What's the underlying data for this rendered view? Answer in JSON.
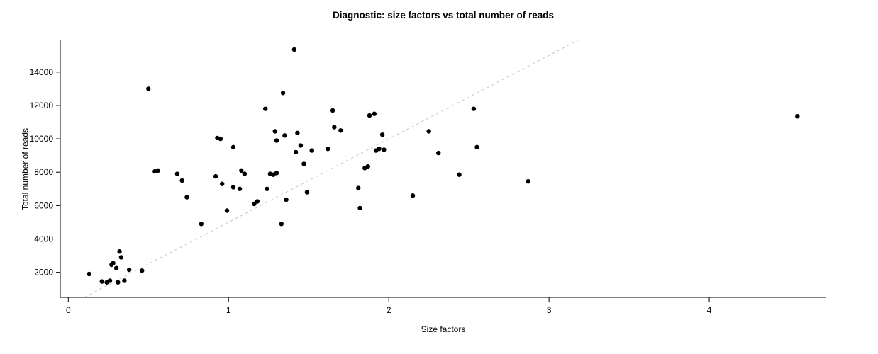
{
  "figure": {
    "title": "Diagnostic: size factors vs total number of reads",
    "xlabel": "Size factors",
    "ylabel": "Total number of reads"
  },
  "chart_data": {
    "type": "scatter",
    "title": "Diagnostic: size factors vs total number of reads",
    "xlabel": "Size factors",
    "ylabel": "Total number of reads",
    "x_ticks": [
      0,
      1,
      2,
      3,
      4
    ],
    "y_ticks": [
      2000,
      4000,
      6000,
      8000,
      10000,
      12000,
      14000
    ],
    "xlim": [
      -0.05,
      4.73
    ],
    "ylim": [
      500,
      15900
    ],
    "grid": false,
    "legend": "none",
    "point_color": "#000000",
    "axis_color": "#000000",
    "reference_line": {
      "style": "dashed",
      "slope": 5000,
      "intercept": 0,
      "color": "#c6c6c6"
    },
    "points": [
      [
        0.13,
        1900
      ],
      [
        0.21,
        1450
      ],
      [
        0.24,
        1400
      ],
      [
        0.26,
        1500
      ],
      [
        0.27,
        2450
      ],
      [
        0.28,
        2550
      ],
      [
        0.3,
        2250
      ],
      [
        0.31,
        1400
      ],
      [
        0.32,
        3250
      ],
      [
        0.33,
        2900
      ],
      [
        0.35,
        1500
      ],
      [
        0.38,
        2150
      ],
      [
        0.46,
        2100
      ],
      [
        0.5,
        13000
      ],
      [
        0.54,
        8050
      ],
      [
        0.56,
        8100
      ],
      [
        0.68,
        7900
      ],
      [
        0.71,
        7500
      ],
      [
        0.74,
        6500
      ],
      [
        0.83,
        4900
      ],
      [
        0.92,
        7750
      ],
      [
        0.93,
        10050
      ],
      [
        0.95,
        10000
      ],
      [
        0.96,
        7300
      ],
      [
        0.99,
        5700
      ],
      [
        1.03,
        9500
      ],
      [
        1.03,
        7100
      ],
      [
        1.07,
        7000
      ],
      [
        1.08,
        8100
      ],
      [
        1.1,
        7900
      ],
      [
        1.16,
        6100
      ],
      [
        1.18,
        6250
      ],
      [
        1.23,
        11800
      ],
      [
        1.24,
        7000
      ],
      [
        1.26,
        7900
      ],
      [
        1.28,
        7850
      ],
      [
        1.29,
        10450
      ],
      [
        1.3,
        9900
      ],
      [
        1.3,
        7950
      ],
      [
        1.33,
        4900
      ],
      [
        1.34,
        12750
      ],
      [
        1.35,
        10200
      ],
      [
        1.36,
        6350
      ],
      [
        1.41,
        15350
      ],
      [
        1.42,
        9200
      ],
      [
        1.43,
        10350
      ],
      [
        1.45,
        9600
      ],
      [
        1.47,
        8500
      ],
      [
        1.49,
        6800
      ],
      [
        1.52,
        9300
      ],
      [
        1.62,
        9400
      ],
      [
        1.65,
        11700
      ],
      [
        1.66,
        10700
      ],
      [
        1.7,
        10500
      ],
      [
        1.81,
        7050
      ],
      [
        1.82,
        5850
      ],
      [
        1.85,
        8250
      ],
      [
        1.87,
        8350
      ],
      [
        1.88,
        11400
      ],
      [
        1.91,
        11500
      ],
      [
        1.92,
        9300
      ],
      [
        1.94,
        9400
      ],
      [
        1.96,
        10250
      ],
      [
        1.97,
        9350
      ],
      [
        2.15,
        6600
      ],
      [
        2.25,
        10450
      ],
      [
        2.31,
        9150
      ],
      [
        2.44,
        7850
      ],
      [
        2.53,
        11800
      ],
      [
        2.55,
        9500
      ],
      [
        2.87,
        7450
      ],
      [
        4.55,
        11350
      ]
    ]
  }
}
